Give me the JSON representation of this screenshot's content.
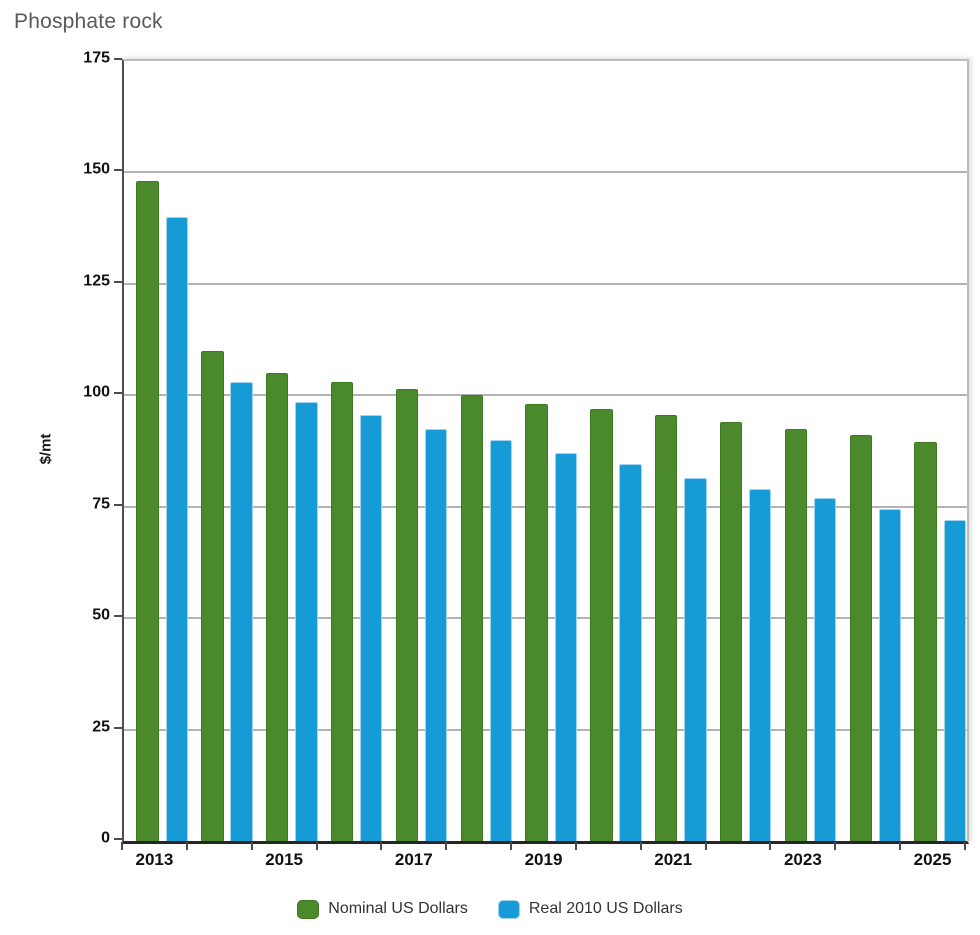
{
  "title": "Phosphate rock",
  "chart_data": {
    "type": "bar",
    "title": "Phosphate rock",
    "ylabel": "$/mt",
    "xlabel": "",
    "ylim": [
      0,
      175
    ],
    "yticks": [
      0,
      25,
      50,
      75,
      100,
      125,
      150,
      175
    ],
    "grid": "horizontal",
    "legend_position": "bottom",
    "categories": [
      "2013",
      "2014",
      "2015",
      "2016",
      "2017",
      "2018",
      "2019",
      "2020",
      "2021",
      "2022",
      "2023",
      "2024",
      "2025"
    ],
    "xtick_labels": [
      "2013",
      "2015",
      "2017",
      "2019",
      "2021",
      "2023",
      "2025"
    ],
    "xtick_label_positions": [
      0,
      2,
      4,
      6,
      8,
      10,
      12
    ],
    "series": [
      {
        "name": "Nominal US Dollars",
        "key": "nominal",
        "color": "#4a8a2d",
        "edge_color": "#3d7a22",
        "values": [
          148,
          110,
          105,
          103,
          101.5,
          100,
          98,
          97,
          95.5,
          94,
          92.5,
          91,
          89.5
        ]
      },
      {
        "name": "Real 2010 US Dollars",
        "key": "real-2010",
        "color": "#169bd7",
        "edge_color": "#9ed4ee",
        "values": [
          140,
          103,
          98.5,
          95.5,
          92.5,
          90,
          87,
          84.5,
          81.5,
          79,
          77,
          74.5,
          72
        ]
      }
    ]
  }
}
